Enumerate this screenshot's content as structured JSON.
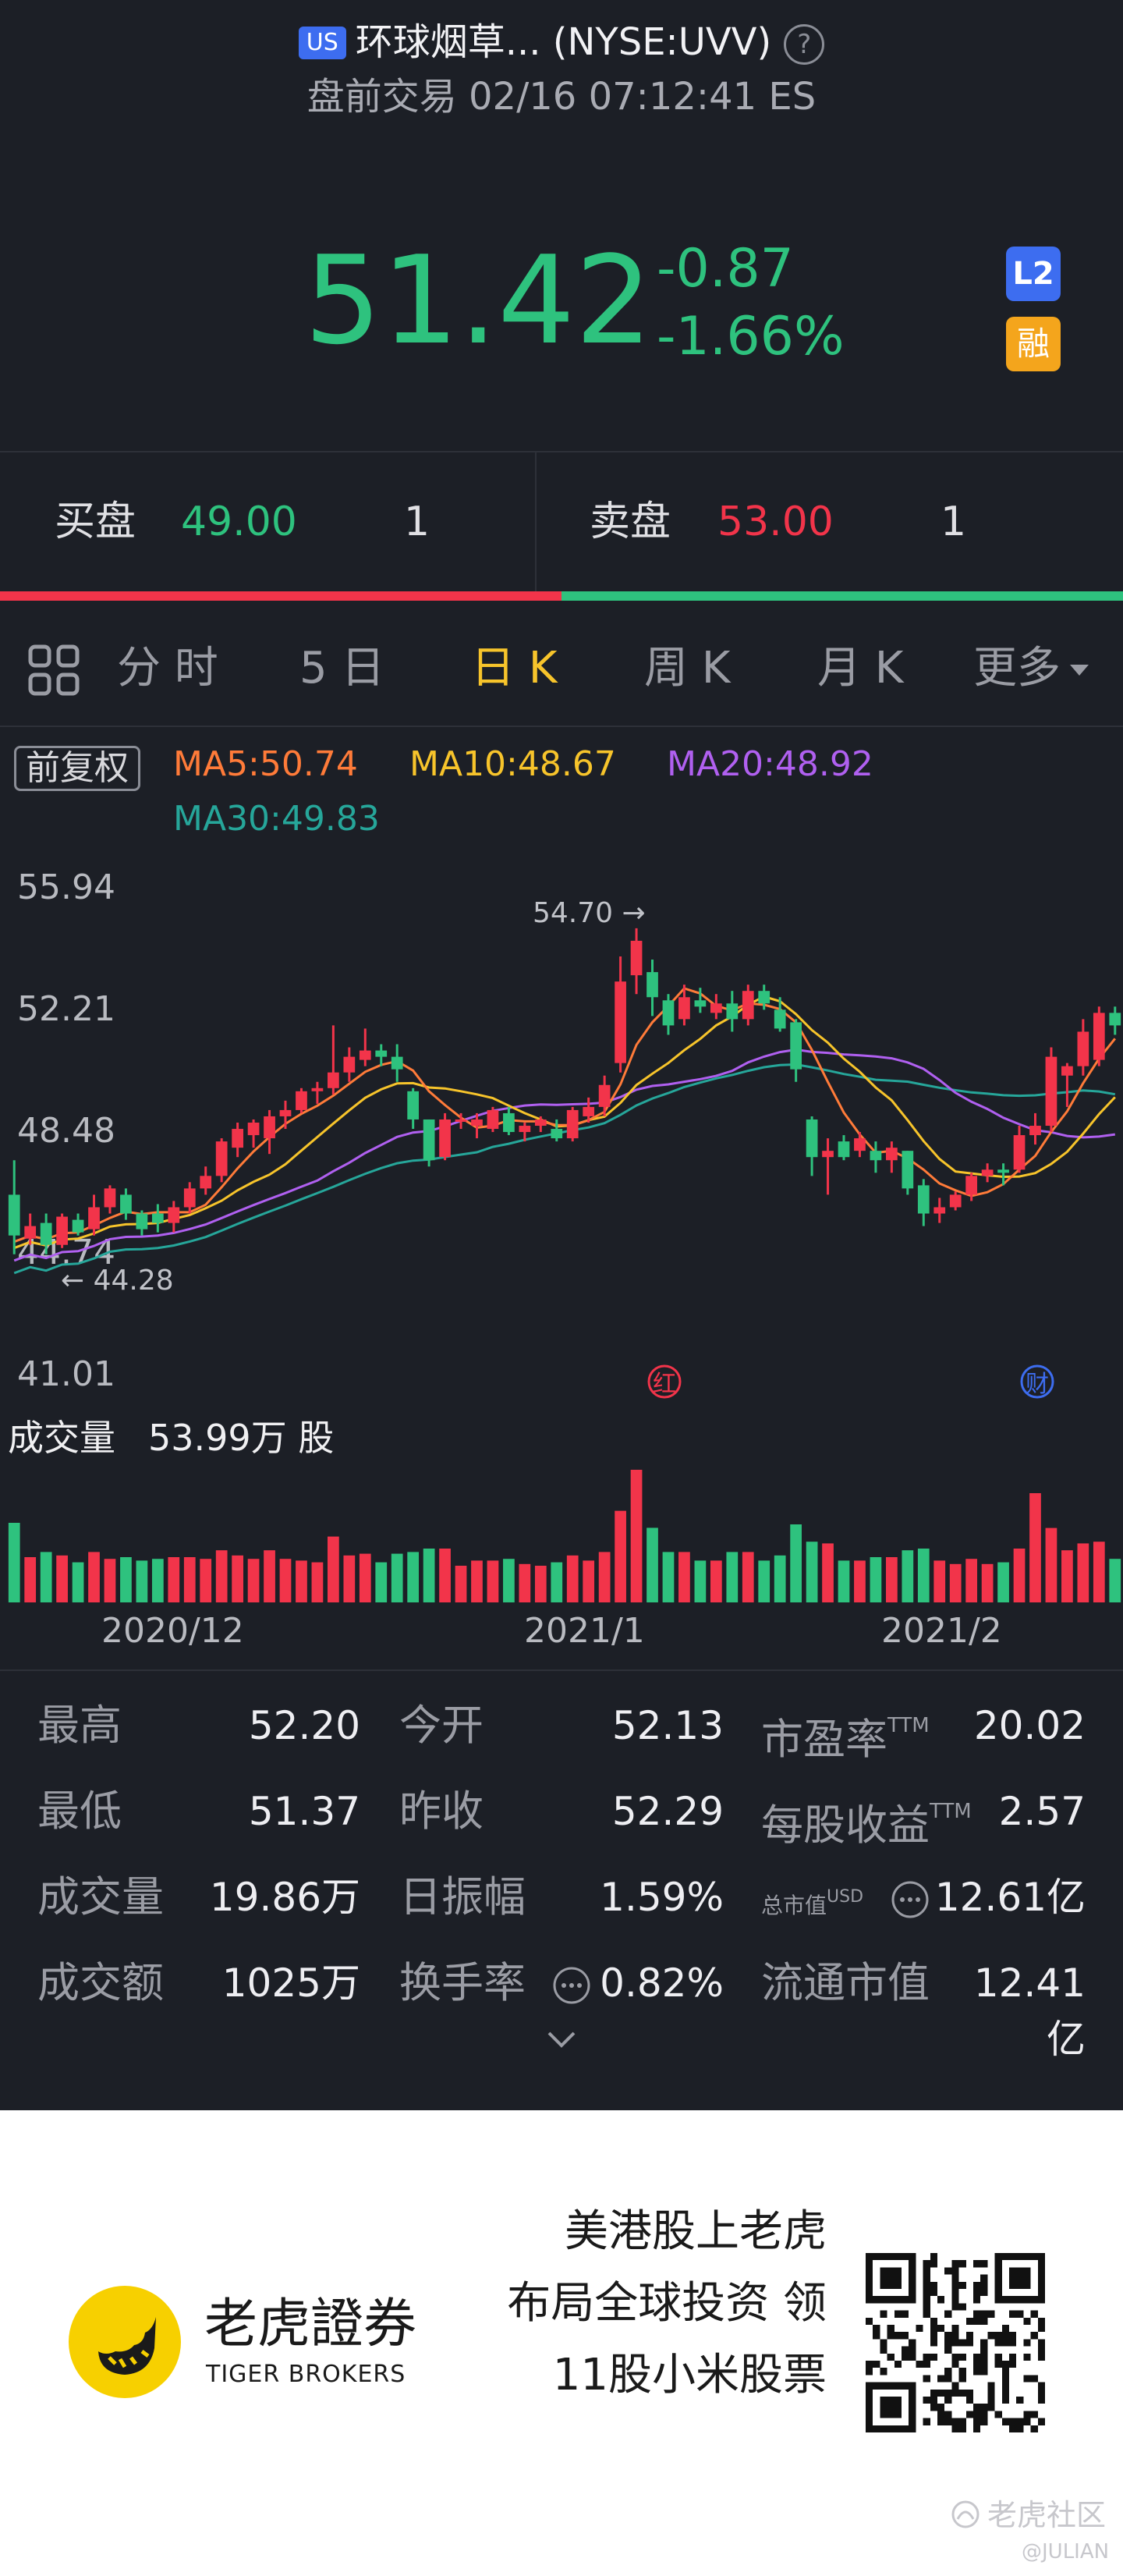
{
  "header": {
    "market_badge": "US",
    "title": "环球烟草... (NYSE:UVV)",
    "help_icon": "?",
    "subtitle": "盘前交易 02/16 07:12:41 ES"
  },
  "quote": {
    "price": "51.42",
    "change": "-0.87",
    "change_pct": "-1.66%",
    "badge_l2": "L2",
    "badge_margin": "融",
    "color_down": "#2ec27e",
    "color_up": "#f2344a"
  },
  "orderbook": {
    "bid_label": "买盘",
    "bid_price": "49.00",
    "bid_size": "1",
    "ask_label": "卖盘",
    "ask_price": "53.00",
    "ask_size": "1"
  },
  "tabs": [
    "分 时",
    "5 日",
    "日 K",
    "周 K",
    "月 K",
    "更多"
  ],
  "active_tab": "日 K",
  "chart": {
    "adjust_label": "前复权",
    "ma5": "MA5:50.74",
    "ma10": "MA10:48.67",
    "ma20": "MA20:48.92",
    "ma30": "MA30:49.83",
    "colors": {
      "ma5": "#ff7b39",
      "ma10": "#f7c42b",
      "ma20": "#b060f0",
      "ma30": "#26a69a"
    },
    "high_marker": "54.70 →",
    "low_marker": "← 44.28",
    "marker_hong": "红",
    "marker_cai": "财",
    "volume_label": "成交量",
    "volume_value": "53.99万 股"
  },
  "chart_data": {
    "type": "candlestick",
    "y_ticks": [
      "55.94",
      "52.21",
      "48.48",
      "44.74",
      "41.01"
    ],
    "ylim": [
      41.01,
      55.94
    ],
    "x_labels": [
      "2020/12",
      "2021/1",
      "2021/2"
    ],
    "max_high": 54.7,
    "min_low": 44.28,
    "candles": [
      {
        "o": 46.2,
        "h": 47.3,
        "l": 44.3,
        "c": 44.9
      },
      {
        "o": 44.8,
        "h": 45.6,
        "l": 44.6,
        "c": 45.2
      },
      {
        "o": 45.3,
        "h": 45.6,
        "l": 44.3,
        "c": 44.6
      },
      {
        "o": 44.6,
        "h": 45.6,
        "l": 44.5,
        "c": 45.5
      },
      {
        "o": 45.4,
        "h": 45.6,
        "l": 44.9,
        "c": 45.0
      },
      {
        "o": 45.1,
        "h": 46.2,
        "l": 44.9,
        "c": 45.8
      },
      {
        "o": 45.8,
        "h": 46.5,
        "l": 45.6,
        "c": 46.4
      },
      {
        "o": 46.2,
        "h": 46.4,
        "l": 45.4,
        "c": 45.6
      },
      {
        "o": 45.6,
        "h": 45.7,
        "l": 44.9,
        "c": 45.1
      },
      {
        "o": 45.6,
        "h": 45.9,
        "l": 45.0,
        "c": 45.3
      },
      {
        "o": 45.3,
        "h": 46.0,
        "l": 45.0,
        "c": 45.8
      },
      {
        "o": 45.8,
        "h": 46.6,
        "l": 45.6,
        "c": 46.4
      },
      {
        "o": 46.4,
        "h": 47.1,
        "l": 46.2,
        "c": 46.8
      },
      {
        "o": 46.8,
        "h": 48.0,
        "l": 46.6,
        "c": 47.9
      },
      {
        "o": 47.7,
        "h": 48.5,
        "l": 47.4,
        "c": 48.3
      },
      {
        "o": 48.1,
        "h": 48.6,
        "l": 47.7,
        "c": 48.5
      },
      {
        "o": 48.0,
        "h": 48.9,
        "l": 47.5,
        "c": 48.7
      },
      {
        "o": 48.7,
        "h": 49.2,
        "l": 48.3,
        "c": 48.9
      },
      {
        "o": 48.9,
        "h": 49.6,
        "l": 48.8,
        "c": 49.5
      },
      {
        "o": 49.5,
        "h": 49.8,
        "l": 49.1,
        "c": 49.6
      },
      {
        "o": 49.6,
        "h": 51.6,
        "l": 49.4,
        "c": 50.1
      },
      {
        "o": 50.1,
        "h": 50.9,
        "l": 49.8,
        "c": 50.6
      },
      {
        "o": 50.5,
        "h": 51.5,
        "l": 50.3,
        "c": 50.8
      },
      {
        "o": 50.8,
        "h": 51.0,
        "l": 50.3,
        "c": 50.6
      },
      {
        "o": 50.6,
        "h": 51.0,
        "l": 49.8,
        "c": 50.2
      },
      {
        "o": 49.5,
        "h": 49.6,
        "l": 48.3,
        "c": 48.6
      },
      {
        "o": 48.6,
        "h": 48.6,
        "l": 47.1,
        "c": 47.3
      },
      {
        "o": 47.4,
        "h": 48.8,
        "l": 47.3,
        "c": 48.6
      },
      {
        "o": 48.6,
        "h": 48.8,
        "l": 48.3,
        "c": 48.6
      },
      {
        "o": 48.4,
        "h": 48.8,
        "l": 48.0,
        "c": 48.6
      },
      {
        "o": 48.3,
        "h": 49.0,
        "l": 48.2,
        "c": 48.9
      },
      {
        "o": 48.8,
        "h": 49.0,
        "l": 48.1,
        "c": 48.2
      },
      {
        "o": 48.2,
        "h": 48.5,
        "l": 47.9,
        "c": 48.4
      },
      {
        "o": 48.4,
        "h": 48.7,
        "l": 48.2,
        "c": 48.6
      },
      {
        "o": 48.3,
        "h": 48.6,
        "l": 47.9,
        "c": 48.0
      },
      {
        "o": 48.0,
        "h": 49.0,
        "l": 47.9,
        "c": 48.9
      },
      {
        "o": 48.7,
        "h": 49.3,
        "l": 48.5,
        "c": 49.0
      },
      {
        "o": 49.0,
        "h": 50.0,
        "l": 48.7,
        "c": 49.7
      },
      {
        "o": 50.4,
        "h": 53.8,
        "l": 50.1,
        "c": 53.0
      },
      {
        "o": 53.2,
        "h": 54.7,
        "l": 52.6,
        "c": 54.3
      },
      {
        "o": 53.3,
        "h": 53.7,
        "l": 51.9,
        "c": 52.5
      },
      {
        "o": 52.4,
        "h": 52.6,
        "l": 51.3,
        "c": 51.6
      },
      {
        "o": 51.8,
        "h": 52.9,
        "l": 51.6,
        "c": 52.5
      },
      {
        "o": 52.4,
        "h": 52.8,
        "l": 52.0,
        "c": 52.2
      },
      {
        "o": 52.0,
        "h": 52.6,
        "l": 51.8,
        "c": 52.3
      },
      {
        "o": 52.3,
        "h": 52.7,
        "l": 51.4,
        "c": 51.8
      },
      {
        "o": 51.8,
        "h": 52.9,
        "l": 51.6,
        "c": 52.7
      },
      {
        "o": 52.7,
        "h": 52.9,
        "l": 52.1,
        "c": 52.3
      },
      {
        "o": 52.1,
        "h": 52.5,
        "l": 51.4,
        "c": 51.5
      },
      {
        "o": 51.7,
        "h": 51.8,
        "l": 49.8,
        "c": 50.2
      },
      {
        "o": 48.6,
        "h": 48.7,
        "l": 46.8,
        "c": 47.4
      },
      {
        "o": 47.4,
        "h": 48.0,
        "l": 46.2,
        "c": 47.6
      },
      {
        "o": 47.9,
        "h": 48.1,
        "l": 47.3,
        "c": 47.4
      },
      {
        "o": 47.6,
        "h": 48.2,
        "l": 47.4,
        "c": 48.0
      },
      {
        "o": 47.6,
        "h": 47.9,
        "l": 46.9,
        "c": 47.3
      },
      {
        "o": 47.3,
        "h": 47.9,
        "l": 46.9,
        "c": 47.7
      },
      {
        "o": 47.6,
        "h": 47.6,
        "l": 46.2,
        "c": 46.4
      },
      {
        "o": 46.5,
        "h": 46.7,
        "l": 45.2,
        "c": 45.6
      },
      {
        "o": 45.6,
        "h": 46.1,
        "l": 45.3,
        "c": 45.8
      },
      {
        "o": 45.8,
        "h": 46.3,
        "l": 45.7,
        "c": 46.2
      },
      {
        "o": 46.2,
        "h": 46.9,
        "l": 46.0,
        "c": 46.8
      },
      {
        "o": 46.8,
        "h": 47.2,
        "l": 46.6,
        "c": 47.0
      },
      {
        "o": 47.0,
        "h": 47.2,
        "l": 46.5,
        "c": 46.9
      },
      {
        "o": 47.0,
        "h": 48.4,
        "l": 46.9,
        "c": 48.1
      },
      {
        "o": 48.1,
        "h": 48.8,
        "l": 47.8,
        "c": 48.4
      },
      {
        "o": 48.4,
        "h": 50.9,
        "l": 48.2,
        "c": 50.6
      },
      {
        "o": 50.0,
        "h": 50.4,
        "l": 49.0,
        "c": 50.3
      },
      {
        "o": 50.3,
        "h": 51.8,
        "l": 50.0,
        "c": 51.4
      },
      {
        "o": 50.5,
        "h": 52.2,
        "l": 50.3,
        "c": 52.0
      },
      {
        "o": 52.0,
        "h": 52.2,
        "l": 51.3,
        "c": 51.6
      }
    ],
    "volume_up_color": "#f2344a",
    "volume_down_color": "#2ec27e"
  },
  "stats": [
    {
      "l1": "最高",
      "v1": "52.20",
      "l2": "今开",
      "v2": "52.13",
      "l3": "市盈率",
      "sup3": "TTM",
      "v3": "20.02"
    },
    {
      "l1": "最低",
      "v1": "51.37",
      "l2": "昨收",
      "v2": "52.29",
      "l3": "每股收益",
      "sup3": "TTM",
      "v3": "2.57"
    },
    {
      "l1": "成交量",
      "v1": "19.86万",
      "l2": "日振幅",
      "v2": "1.59%",
      "l3": "总市值",
      "sup3": "USD",
      "v3": "12.61亿"
    },
    {
      "l1": "成交额",
      "v1": "1025万",
      "l2": "换手率",
      "v2": "0.82%",
      "l3": "流通市值",
      "sup3": "",
      "v3": "12.41亿"
    }
  ],
  "promo": {
    "brand_cn": "老虎證券",
    "brand_en": "TIGER BROKERS",
    "slogan_1": "美港股上老虎",
    "slogan_2": "布局全球投资 领",
    "slogan_3": "11股小米股票",
    "watermark": "老虎社区",
    "watermark_user": "@JULIAN"
  }
}
